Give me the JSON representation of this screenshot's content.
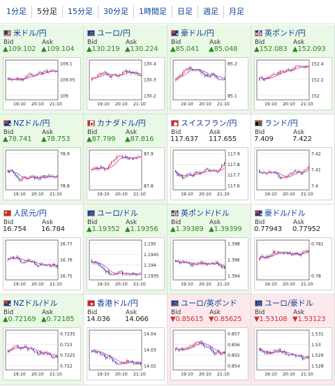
{
  "tabs": [
    {
      "label": "1分足",
      "active": false
    },
    {
      "label": "5分足",
      "active": true
    },
    {
      "label": "15分足",
      "active": false
    },
    {
      "label": "30分足",
      "active": false
    },
    {
      "label": "1時間足",
      "active": false
    },
    {
      "label": "日足",
      "active": false
    },
    {
      "label": "週足",
      "active": false
    },
    {
      "label": "月足",
      "active": false
    }
  ],
  "labels": {
    "bid": "Bid",
    "ask": "Ask"
  },
  "colors": {
    "up": "#2a8a1e",
    "down": "#c8323c",
    "green_bg": "#eaf8e6",
    "pink_bg": "#fde9ec",
    "link": "#0a3f9a",
    "ma": "#c21ab8"
  },
  "time_labels": [
    "19:10",
    "20:10",
    "21:10"
  ],
  "pairs": [
    {
      "name": "米ドル/円",
      "flag": "us",
      "dir": "up",
      "bid": "▲109.102",
      "ask": "▲109.104",
      "ticks": [
        "109.1",
        "109.05",
        "109"
      ],
      "seed": 11,
      "trend": -0.3
    },
    {
      "name": "ユーロ/円",
      "flag": "eu",
      "dir": "up",
      "bid": "▲130.219",
      "ask": "▲130.224",
      "ticks": [
        "130.4",
        "130.3",
        "130.2"
      ],
      "seed": 23,
      "trend": 0.4
    },
    {
      "name": "豪ドル/円",
      "flag": "au",
      "dir": "up",
      "bid": "▲85.041",
      "ask": "▲85.048",
      "ticks": [
        "85.2",
        "85.1"
      ],
      "seed": 37,
      "trend": -0.4
    },
    {
      "name": "英ポンド/円",
      "flag": "gb",
      "dir": "up",
      "bid": "▲152.083",
      "ask": "▲152.093",
      "ticks": [
        "152.4",
        "152.2",
        "152"
      ],
      "seed": 41,
      "trend": -0.2
    },
    {
      "name": "NZドル/円",
      "flag": "nz",
      "dir": "up",
      "bid": "▲78.741",
      "ask": "▲78.753",
      "ticks": [
        "78.9",
        "78.8"
      ],
      "seed": 53,
      "trend": -0.1
    },
    {
      "name": "カナダドル/円",
      "flag": "ca",
      "dir": "up",
      "bid": "▲87.799",
      "ask": "▲87.816",
      "ticks": [
        "87.9",
        "87.8"
      ],
      "seed": 61,
      "trend": -0.5
    },
    {
      "name": "スイスフラン/円",
      "flag": "ch",
      "dir": "flat",
      "bid": "117.637",
      "ask": "117.655",
      "ticks": [
        "117.9",
        "117.8",
        "117.7",
        "117.6"
      ],
      "seed": 71,
      "trend": -0.7
    },
    {
      "name": "ランド/円",
      "flag": "za",
      "dir": "flat",
      "bid": "7.409",
      "ask": "7.422",
      "ticks": [
        "7.42",
        "7.41",
        "7.4"
      ],
      "seed": 83,
      "trend": 0.0
    },
    {
      "name": "人民元/円",
      "flag": "cn",
      "dir": "flat",
      "bid": "16.754",
      "ask": "16.784",
      "ticks": [
        "16.77",
        "16.76",
        "16.75"
      ],
      "seed": 97,
      "trend": -0.3
    },
    {
      "name": "ユーロ/ドル",
      "flag": "eu",
      "dir": "up",
      "bid": "▲1.19352",
      "ask": "▲1.19356",
      "ticks": [
        "1.195",
        "1.1945",
        "1.194",
        "1.1935"
      ],
      "seed": 101,
      "trend": 0.5
    },
    {
      "name": "英ポンド/ドル",
      "flag": "gb",
      "dir": "up",
      "bid": "▲1.39389",
      "ask": "▲1.39399",
      "ticks": [
        "1.398",
        "1.396",
        "1.394"
      ],
      "seed": 113,
      "trend": -0.1
    },
    {
      "name": "豪ドル/ドル",
      "flag": "au",
      "dir": "flat",
      "bid": "0.77943",
      "ask": "0.77952",
      "ticks": [
        "0.781",
        "0.78"
      ],
      "seed": 127,
      "trend": -0.3
    },
    {
      "name": "NZドル/ドル",
      "flag": "nz",
      "dir": "up",
      "bid": "▲0.72169",
      "ask": "▲0.72185",
      "ticks": [
        "0.7235",
        "0.723",
        "0.7225",
        "0.722"
      ],
      "seed": 131,
      "trend": -0.2
    },
    {
      "name": "香港ドル/円",
      "flag": "hk",
      "dir": "flat",
      "bid": "14.036",
      "ask": "14.066",
      "ticks": [
        "14.04",
        "14.03",
        "14.02"
      ],
      "seed": 149,
      "trend": 0.3
    },
    {
      "name": "ユーロ/英ポンド",
      "flag": "eu",
      "dir": "dn",
      "bid": "▼0.85615",
      "ask": "▼0.85625",
      "ticks": [
        "0.857",
        "0.856",
        "0.855",
        "0.854"
      ],
      "seed": 157,
      "trend": 0.2
    },
    {
      "name": "ユーロ/豪ドル",
      "flag": "eu",
      "dir": "dn",
      "bid": "▼1.53108",
      "ask": "▼1.53123",
      "ticks": [
        "1.531",
        "1.53",
        "1.529",
        "1.528"
      ],
      "seed": 163,
      "trend": 0.4
    }
  ]
}
